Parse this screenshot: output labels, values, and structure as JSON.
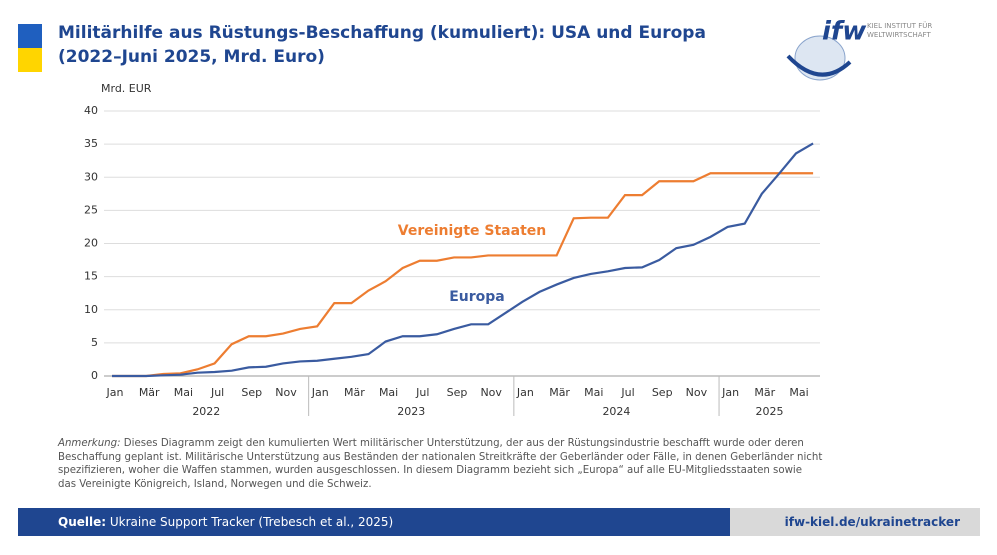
{
  "header": {
    "title": [
      "Militärhilfe aus Rüstungs-Beschaffung (kumuliert): USA und Europa",
      "(2022–Juni 2025, Mrd. Euro)"
    ],
    "logo": "ifw",
    "logo_text": [
      "KIEL INSTITUT FÜR",
      "WELTWIRTSCHAFT"
    ]
  },
  "chart_data": {
    "type": "line",
    "ylabel": "Mrd. EUR",
    "categories": [
      "Jan",
      null,
      "Mär",
      null,
      "Mai",
      null,
      "Jul",
      null,
      "Sep",
      null,
      "Nov",
      null,
      "Jan",
      null,
      "Mär",
      null,
      "Mai",
      null,
      "Jul",
      null,
      "Sep",
      null,
      "Nov",
      null,
      "Jan",
      null,
      "Mär",
      null,
      "Mai",
      null,
      "Jul",
      null,
      "Sep",
      null,
      "Nov",
      null,
      "Jan",
      null,
      "Mär",
      null,
      "Mai",
      null
    ],
    "years": [
      "2022",
      "2023",
      "2024",
      "2025"
    ],
    "series": [
      {
        "name": "Vereinigte Staaten",
        "color": "#ed7d31",
        "values": [
          0,
          0,
          0,
          0.3,
          0.4,
          1.0,
          1.9,
          4.8,
          6.0,
          6.0,
          6.4,
          7.1,
          7.5,
          11.0,
          11.0,
          12.9,
          14.3,
          16.3,
          17.4,
          17.4,
          17.9,
          17.9,
          18.2,
          18.2,
          18.2,
          18.2,
          18.2,
          23.8,
          23.9,
          23.9,
          27.3,
          27.3,
          29.4,
          29.4,
          29.4,
          30.6,
          30.6,
          30.6,
          30.6,
          30.6,
          30.6,
          30.6
        ]
      },
      {
        "name": "Europa",
        "color": "#3a5ba0",
        "values": [
          0,
          0,
          0,
          0.1,
          0.2,
          0.5,
          0.6,
          0.8,
          1.3,
          1.4,
          1.9,
          2.2,
          2.3,
          2.6,
          2.9,
          3.3,
          5.2,
          6.0,
          6.0,
          6.3,
          7.1,
          7.8,
          7.8,
          9.5,
          11.2,
          12.7,
          13.8,
          14.8,
          15.4,
          15.8,
          16.3,
          16.4,
          17.5,
          19.3,
          19.8,
          21.0,
          22.5,
          23.0,
          27.5,
          30.5,
          33.6,
          35.1
        ]
      }
    ],
    "ylim": [
      0,
      40
    ],
    "yticks": [
      0,
      5,
      10,
      15,
      20,
      25,
      30,
      35,
      40
    ],
    "grid": true
  },
  "note": {
    "label": "Anmerkung:",
    "lines": [
      " Dieses Diagramm zeigt den kumulierten Wert militärischer Unterstützung, der aus der Rüstungsindustrie beschafft wurde oder deren",
      "Beschaffung geplant ist. Militärische Unterstützung aus Beständen der nationalen Streitkräfte der Geberländer oder Fälle, in denen Geberländer nicht",
      "spezifizieren, woher die Waffen stammen, wurden ausgeschlossen. In diesem Diagramm bezieht sich „Europa“ auf alle EU-Mitgliedsstaaten sowie",
      "das Vereinigte Königreich, Island, Norwegen und die Schweiz."
    ]
  },
  "footer": {
    "source_label": "Quelle:",
    "source": "Ukraine Support Tracker (Trebesch et al., 2025)",
    "url": "ifw-kiel.de/ukrainetracker"
  }
}
